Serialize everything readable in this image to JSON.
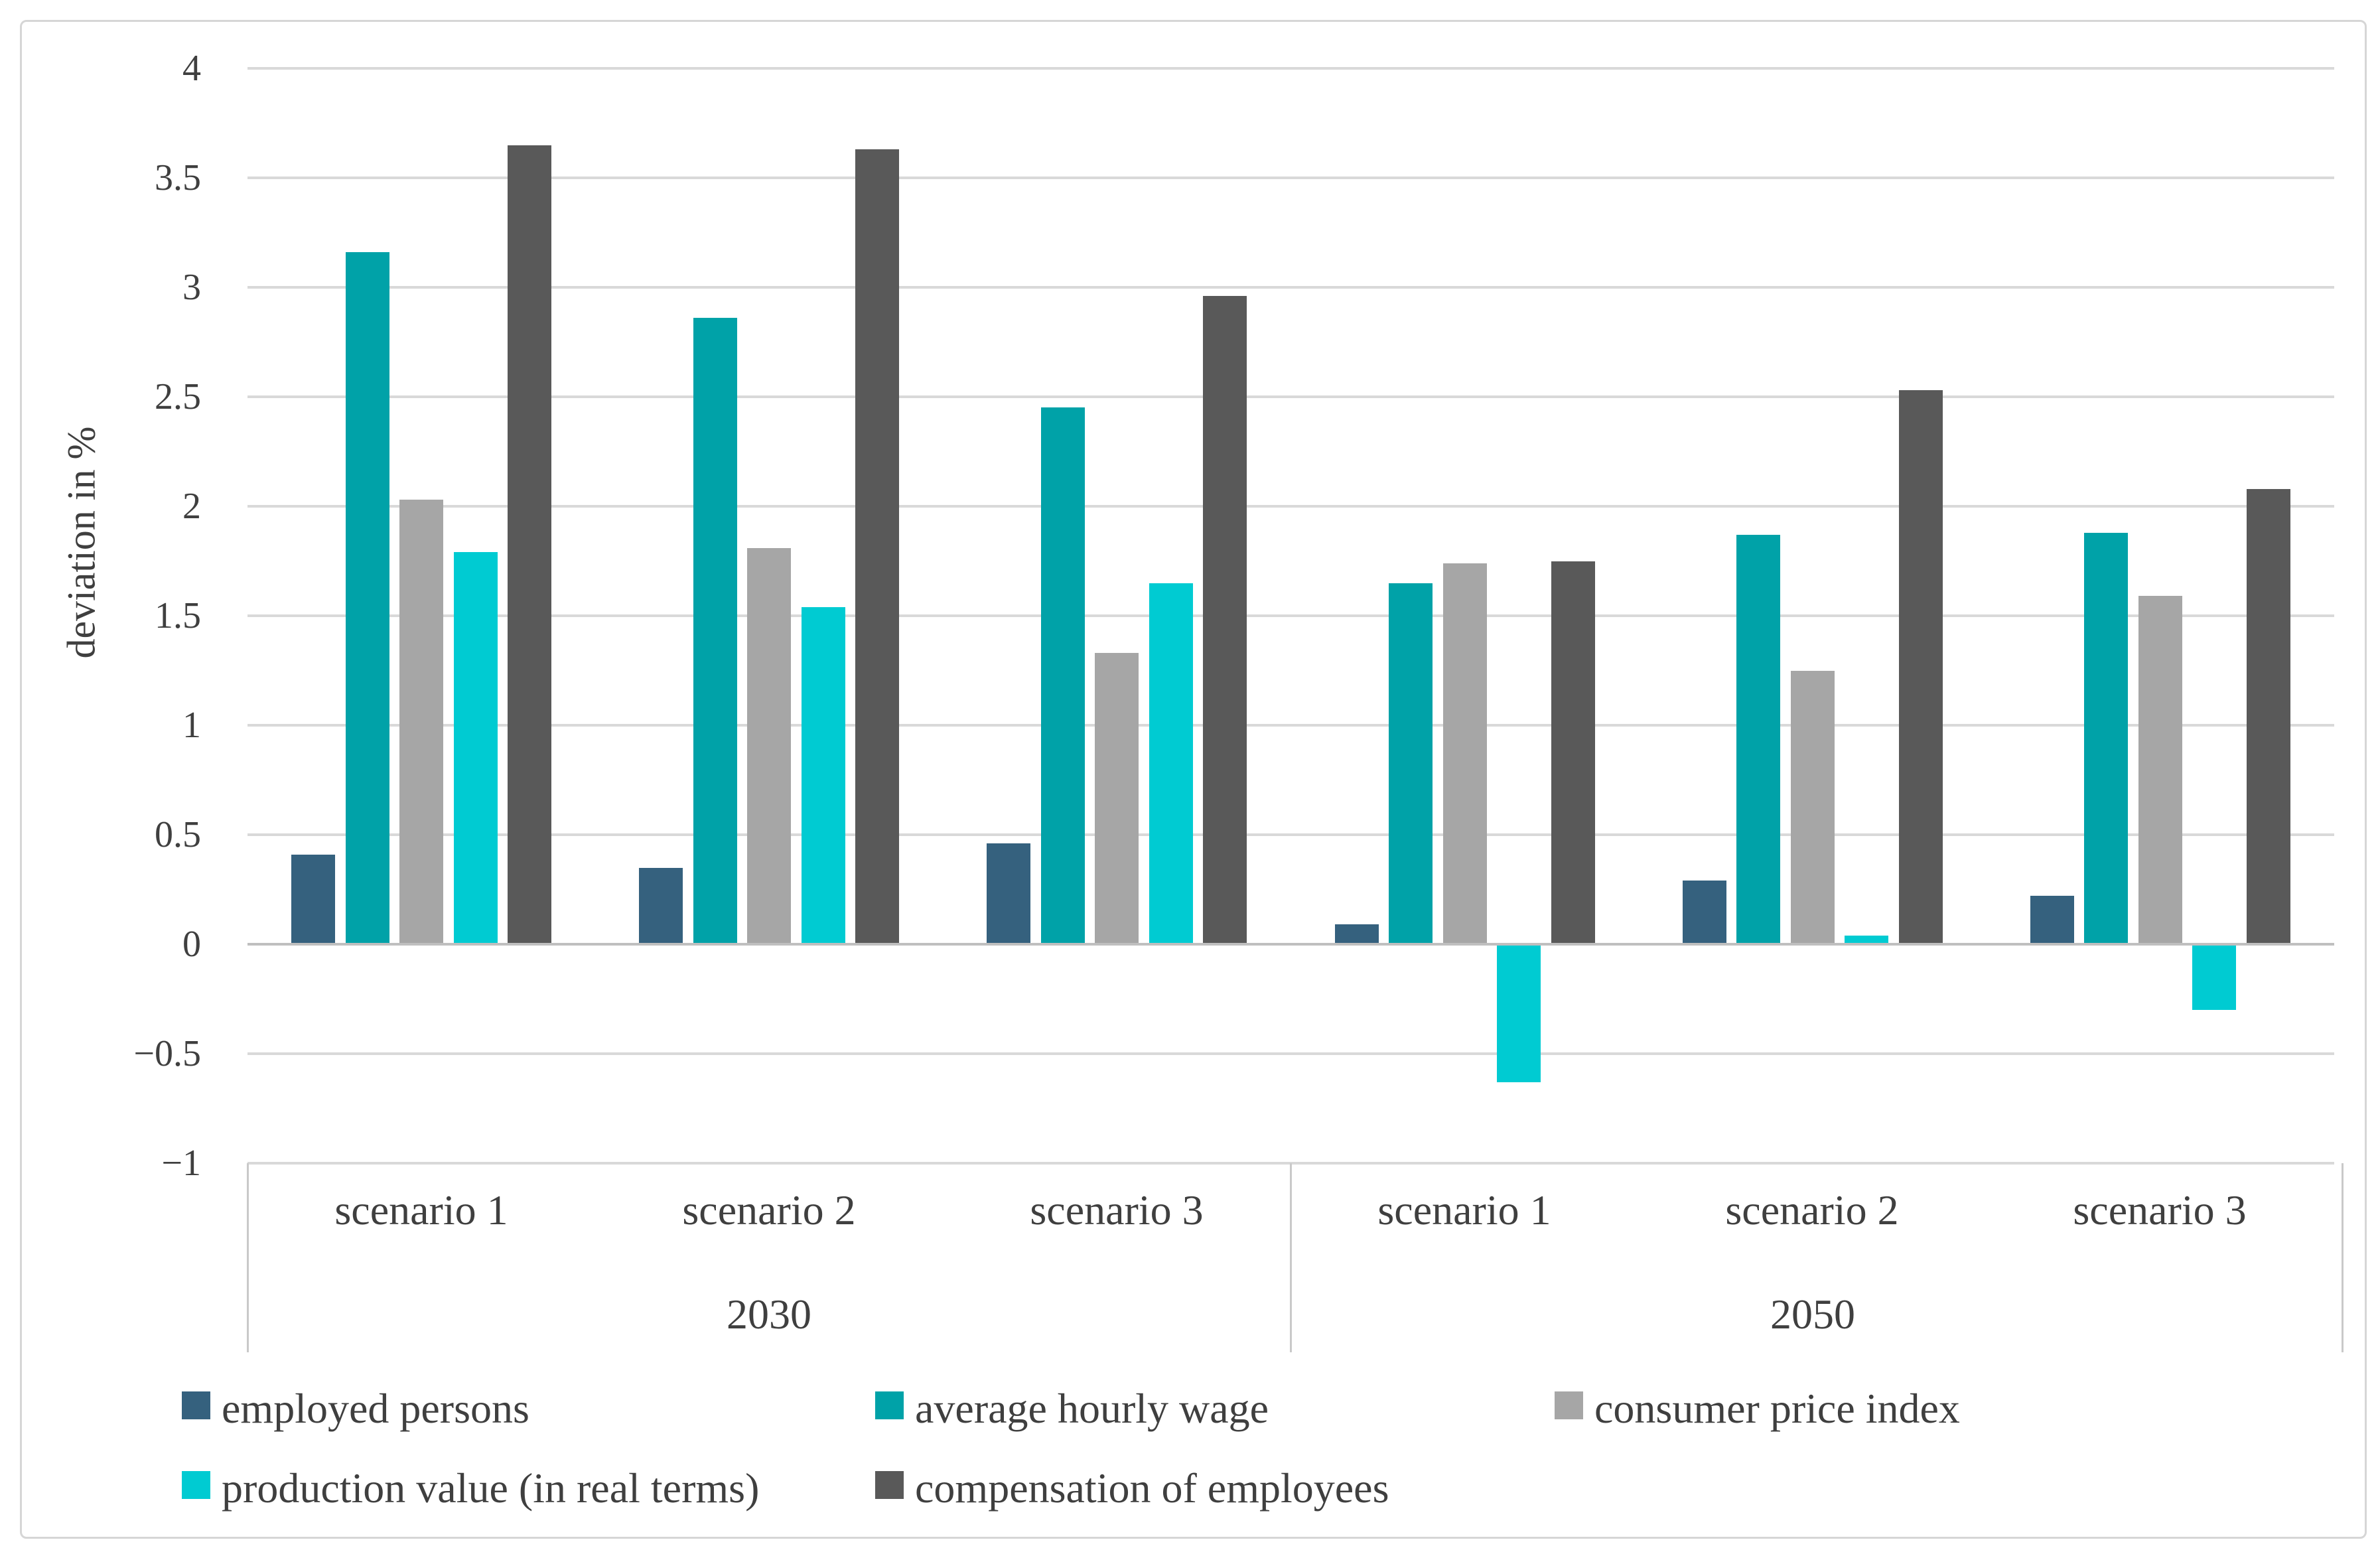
{
  "figure": {
    "background": "#FFFFFF",
    "border_color": "#D6D6D6",
    "text_color": "#3F3F3F",
    "gridline_color": "#D9D9D9",
    "axis_line_color": "#BFBFBF"
  },
  "chart_data": {
    "type": "bar",
    "title": "",
    "xlabel": "",
    "ylabel": "deviation in %",
    "ylim": [
      -1,
      4
    ],
    "ytick_step": 0.5,
    "yticks": [
      "4",
      "3.5",
      "3",
      "2.5",
      "2",
      "1.5",
      "1",
      "0.5",
      "0",
      "−0.5",
      "−1"
    ],
    "grid": true,
    "legend_position": "bottom",
    "categories": [
      "scenario 1",
      "scenario 2",
      "scenario 3",
      "scenario 1",
      "scenario 2",
      "scenario 3"
    ],
    "category_groups": [
      {
        "label": "2030",
        "spans_categories": [
          0,
          1,
          2
        ]
      },
      {
        "label": "2050",
        "spans_categories": [
          3,
          4,
          5
        ]
      }
    ],
    "series": [
      {
        "name": "employed persons",
        "color": "#35617E",
        "values": [
          0.41,
          0.35,
          0.46,
          0.09,
          0.29,
          0.22
        ]
      },
      {
        "name": "average hourly wage",
        "color": "#00A2A8",
        "values": [
          3.16,
          2.86,
          2.45,
          1.65,
          1.87,
          1.88
        ]
      },
      {
        "name": "consumer price index",
        "color": "#A6A6A6",
        "values": [
          2.03,
          1.81,
          1.33,
          1.74,
          1.25,
          1.59
        ]
      },
      {
        "name": "production value (in real terms)",
        "color": "#00CBD2",
        "values": [
          1.79,
          1.54,
          1.65,
          -0.63,
          0.04,
          -0.3
        ]
      },
      {
        "name": "compensation of employees",
        "color": "#595959",
        "values": [
          3.65,
          3.63,
          2.96,
          1.75,
          2.53,
          2.08
        ]
      }
    ]
  }
}
